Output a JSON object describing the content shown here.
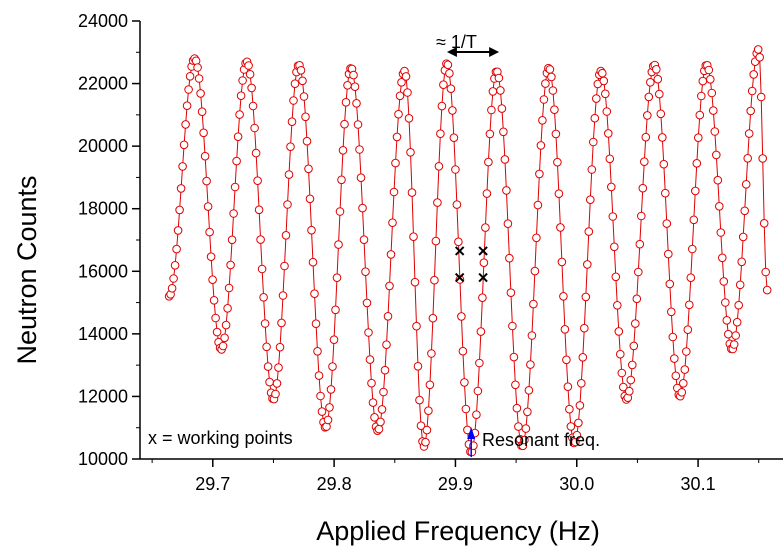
{
  "chart_data": {
    "type": "scatter",
    "title": "",
    "xlabel": "Applied Frequency (Hz)",
    "ylabel": "Neutron Counts",
    "xlim": [
      29.64,
      30.17
    ],
    "ylim": [
      10000,
      24000
    ],
    "x_ticks": [
      29.7,
      29.8,
      29.9,
      30.0,
      30.1
    ],
    "x_tick_labels": [
      "29.7",
      "29.8",
      "29.9",
      "30.0",
      "30.1"
    ],
    "y_ticks": [
      10000,
      12000,
      14000,
      16000,
      18000,
      20000,
      22000,
      24000
    ],
    "y_tick_labels": [
      "10000",
      "12000",
      "14000",
      "16000",
      "18000",
      "20000",
      "22000",
      "24000"
    ],
    "grid": false,
    "series": [
      {
        "color": "#e00000",
        "marker": "open-circle",
        "line": "solid",
        "x_start": 29.664,
        "x_end": 30.157,
        "points": 400,
        "period_hz": 0.0434,
        "peaks_x": [
          29.685,
          29.728,
          29.771,
          29.814,
          29.858,
          29.893,
          29.934,
          29.977,
          30.02,
          30.064,
          30.107,
          30.15
        ],
        "peaks_y": [
          22800,
          22700,
          22600,
          22500,
          22400,
          22650,
          22400,
          22500,
          22400,
          22600,
          22600,
          23100
        ],
        "troughs_x": [
          29.707,
          29.75,
          29.793,
          29.836,
          29.874,
          29.913,
          29.955,
          29.998,
          30.041,
          30.085,
          30.128
        ],
        "troughs_y": [
          13500,
          11900,
          11000,
          10900,
          10400,
          10200,
          10400,
          10500,
          11900,
          12000,
          13500
        ]
      },
      {
        "name": "x = working points",
        "color": "#000000",
        "marker": "x",
        "x": [
          29.9035,
          29.9035,
          29.9228,
          29.9228
        ],
        "y": [
          16650,
          15800,
          16650,
          15800
        ]
      }
    ],
    "annotations": [
      {
        "text": "x = working points"
      },
      {
        "text": "Resonant freq.",
        "x": 29.913,
        "y": 10000
      },
      {
        "text": "≈ 1/T",
        "x1": 29.893,
        "x2": 29.936,
        "y": 22900
      }
    ]
  }
}
